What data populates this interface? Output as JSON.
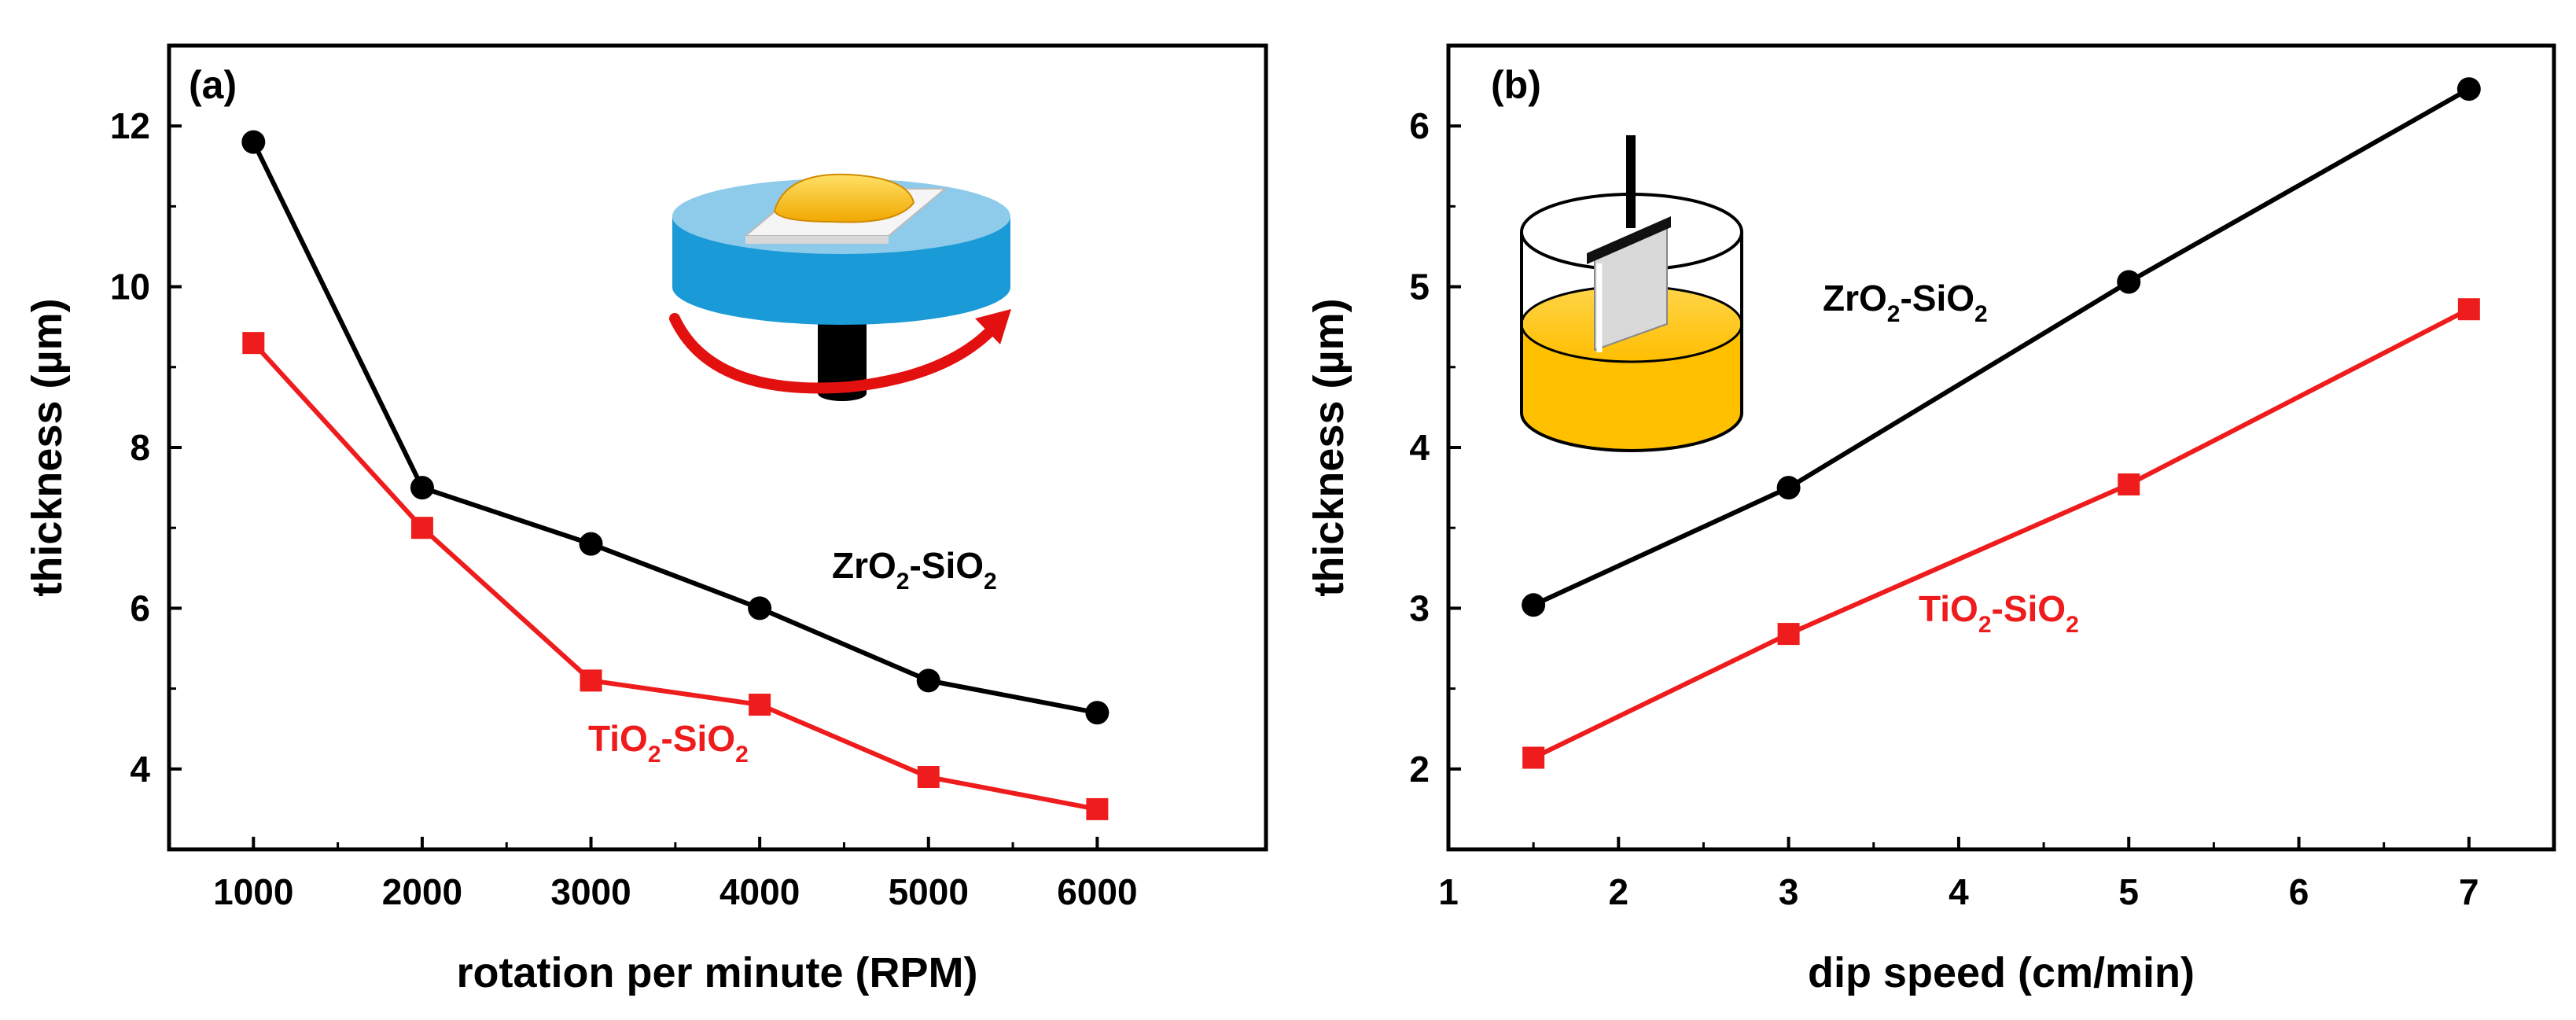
{
  "chart_data": [
    {
      "type": "line",
      "panel_label": "(a)",
      "xlabel": "rotation per minute (RPM)",
      "ylabel": "thickness  (µm)",
      "x": [
        1000,
        2000,
        3000,
        4000,
        5000,
        6000
      ],
      "xticks": [
        "1000",
        "2000",
        "3000",
        "4000",
        "5000",
        "6000"
      ],
      "xlim": [
        500,
        7000
      ],
      "ylim": [
        3,
        13
      ],
      "yticks": [
        "4",
        "6",
        "8",
        "10",
        "12"
      ],
      "ytick_values": [
        4,
        6,
        8,
        10,
        12
      ],
      "series": [
        {
          "name": "ZrO2-SiO2",
          "label_main": "ZrO",
          "label_mid": "-SiO",
          "label_sub": "2",
          "color": "#000000",
          "marker": "circle",
          "values": [
            11.8,
            7.5,
            6.8,
            6.0,
            5.1,
            4.7
          ]
        },
        {
          "name": "TiO2-SiO2",
          "label_main": "TiO",
          "label_mid": "-SiO",
          "label_sub": "2",
          "color": "#ee1c1c",
          "marker": "square",
          "values": [
            9.3,
            7.0,
            5.1,
            4.8,
            3.9,
            3.5
          ]
        }
      ],
      "annotation": "spin-coater-illustration"
    },
    {
      "type": "line",
      "panel_label": "(b)",
      "xlabel": "dip speed (cm/min)",
      "ylabel": "thickness (µm)",
      "x": [
        1.5,
        3,
        5,
        7
      ],
      "xticks": [
        "1",
        "2",
        "3",
        "4",
        "5",
        "6",
        "7"
      ],
      "xtick_values": [
        1,
        2,
        3,
        4,
        5,
        6,
        7
      ],
      "xlim": [
        1,
        7.5
      ],
      "ylim": [
        1.5,
        6.5
      ],
      "yticks": [
        "2",
        "3",
        "4",
        "5",
        "6"
      ],
      "ytick_values": [
        2,
        3,
        4,
        5,
        6
      ],
      "series": [
        {
          "name": "ZrO2-SiO2",
          "label_main": "ZrO",
          "label_mid": "-SiO",
          "label_sub": "2",
          "color": "#000000",
          "marker": "circle",
          "values": [
            3.02,
            3.75,
            5.03,
            6.23
          ]
        },
        {
          "name": "TiO2-SiO2",
          "label_main": "TiO",
          "label_mid": "-SiO",
          "label_sub": "2",
          "color": "#ee1c1c",
          "marker": "square",
          "values": [
            2.07,
            2.84,
            3.77,
            4.86
          ]
        }
      ],
      "annotation": "dip-coater-illustration"
    }
  ]
}
